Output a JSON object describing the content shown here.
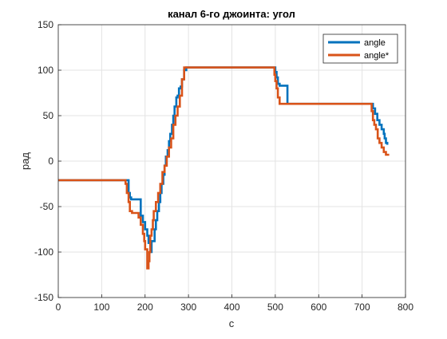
{
  "chart_data": {
    "type": "line",
    "title": "канал 6-го джоинта: угол",
    "xlabel": "с",
    "ylabel": "рад",
    "xlim": [
      0,
      800
    ],
    "ylim": [
      -150,
      150
    ],
    "xticks": [
      0,
      100,
      200,
      300,
      400,
      500,
      600,
      700,
      800
    ],
    "yticks": [
      -150,
      -100,
      -50,
      0,
      50,
      100,
      150
    ],
    "grid": true,
    "legend": "top-right",
    "series": [
      {
        "name": "angle",
        "color": "#0072BD",
        "x": [
          0,
          155,
          162,
          165,
          168,
          175,
          185,
          190,
          195,
          200,
          203,
          205,
          208,
          212,
          215,
          218,
          222,
          225,
          228,
          232,
          235,
          238,
          242,
          245,
          248,
          252,
          255,
          258,
          262,
          265,
          268,
          272,
          275,
          278,
          282,
          285,
          290,
          295,
          300,
          350,
          400,
          450,
          498,
          500,
          503,
          506,
          510,
          515,
          520,
          525,
          528,
          530,
          535,
          600,
          650,
          700,
          720,
          725,
          730,
          735,
          740,
          745,
          750,
          752,
          755,
          758
        ],
        "y": [
          -21,
          -21,
          -35,
          -40,
          -42,
          -42,
          -42,
          -60,
          -67,
          -75,
          -75,
          -82,
          -90,
          -100,
          -88,
          -88,
          -75,
          -65,
          -55,
          -45,
          -35,
          -25,
          -15,
          -5,
          5,
          12,
          22,
          30,
          40,
          50,
          60,
          70,
          72,
          80,
          82,
          90,
          100,
          103,
          103,
          103,
          103,
          103,
          103,
          98,
          92,
          85,
          83,
          83,
          83,
          83,
          63,
          63,
          63,
          63,
          63,
          63,
          63,
          58,
          52,
          45,
          40,
          35,
          30,
          25,
          20,
          18
        ]
      },
      {
        "name": "angle*",
        "color": "#D95319",
        "x": [
          0,
          150,
          155,
          158,
          162,
          165,
          170,
          175,
          180,
          185,
          190,
          195,
          198,
          200,
          203,
          205,
          208,
          210,
          212,
          215,
          218,
          220,
          225,
          230,
          235,
          240,
          245,
          250,
          255,
          260,
          265,
          270,
          275,
          280,
          285,
          290,
          300,
          350,
          400,
          450,
          495,
          498,
          500,
          503,
          506,
          510,
          600,
          650,
          700,
          718,
          722,
          725,
          728,
          732,
          736,
          740,
          745,
          750,
          755,
          760
        ],
        "y": [
          -21,
          -21,
          -25,
          -35,
          -45,
          -55,
          -57,
          -57,
          -57,
          -62,
          -70,
          -80,
          -88,
          -97,
          -97,
          -118,
          -110,
          -100,
          -82,
          -75,
          -65,
          -55,
          -45,
          -35,
          -25,
          -12,
          -5,
          5,
          15,
          25,
          40,
          50,
          60,
          72,
          90,
          103,
          103,
          103,
          103,
          103,
          103,
          95,
          88,
          80,
          70,
          63,
          63,
          63,
          63,
          63,
          55,
          45,
          40,
          35,
          25,
          20,
          15,
          10,
          7,
          6
        ]
      }
    ]
  }
}
